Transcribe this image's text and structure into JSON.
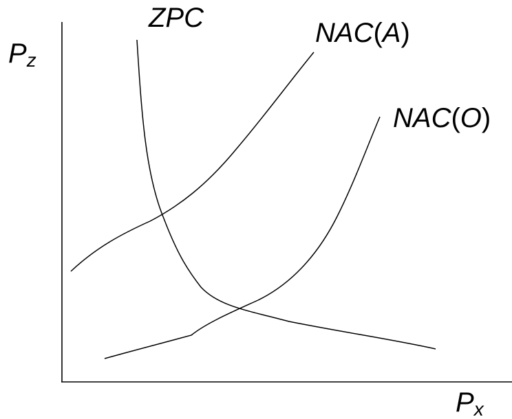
{
  "axes": {
    "y_label_main": "P",
    "y_label_sub": "z",
    "x_label_main": "P",
    "x_label_sub": "x"
  },
  "curves": {
    "zpc": {
      "label": "ZPC"
    },
    "nac_a": {
      "label_main": "NAC",
      "label_open": "(",
      "label_arg": "A",
      "label_close": ")"
    },
    "nac_o": {
      "label_main": "NAC",
      "label_open": "(",
      "label_arg": "O",
      "label_close": ")"
    }
  },
  "colors": {
    "line": "#000000",
    "background": "#ffffff"
  }
}
